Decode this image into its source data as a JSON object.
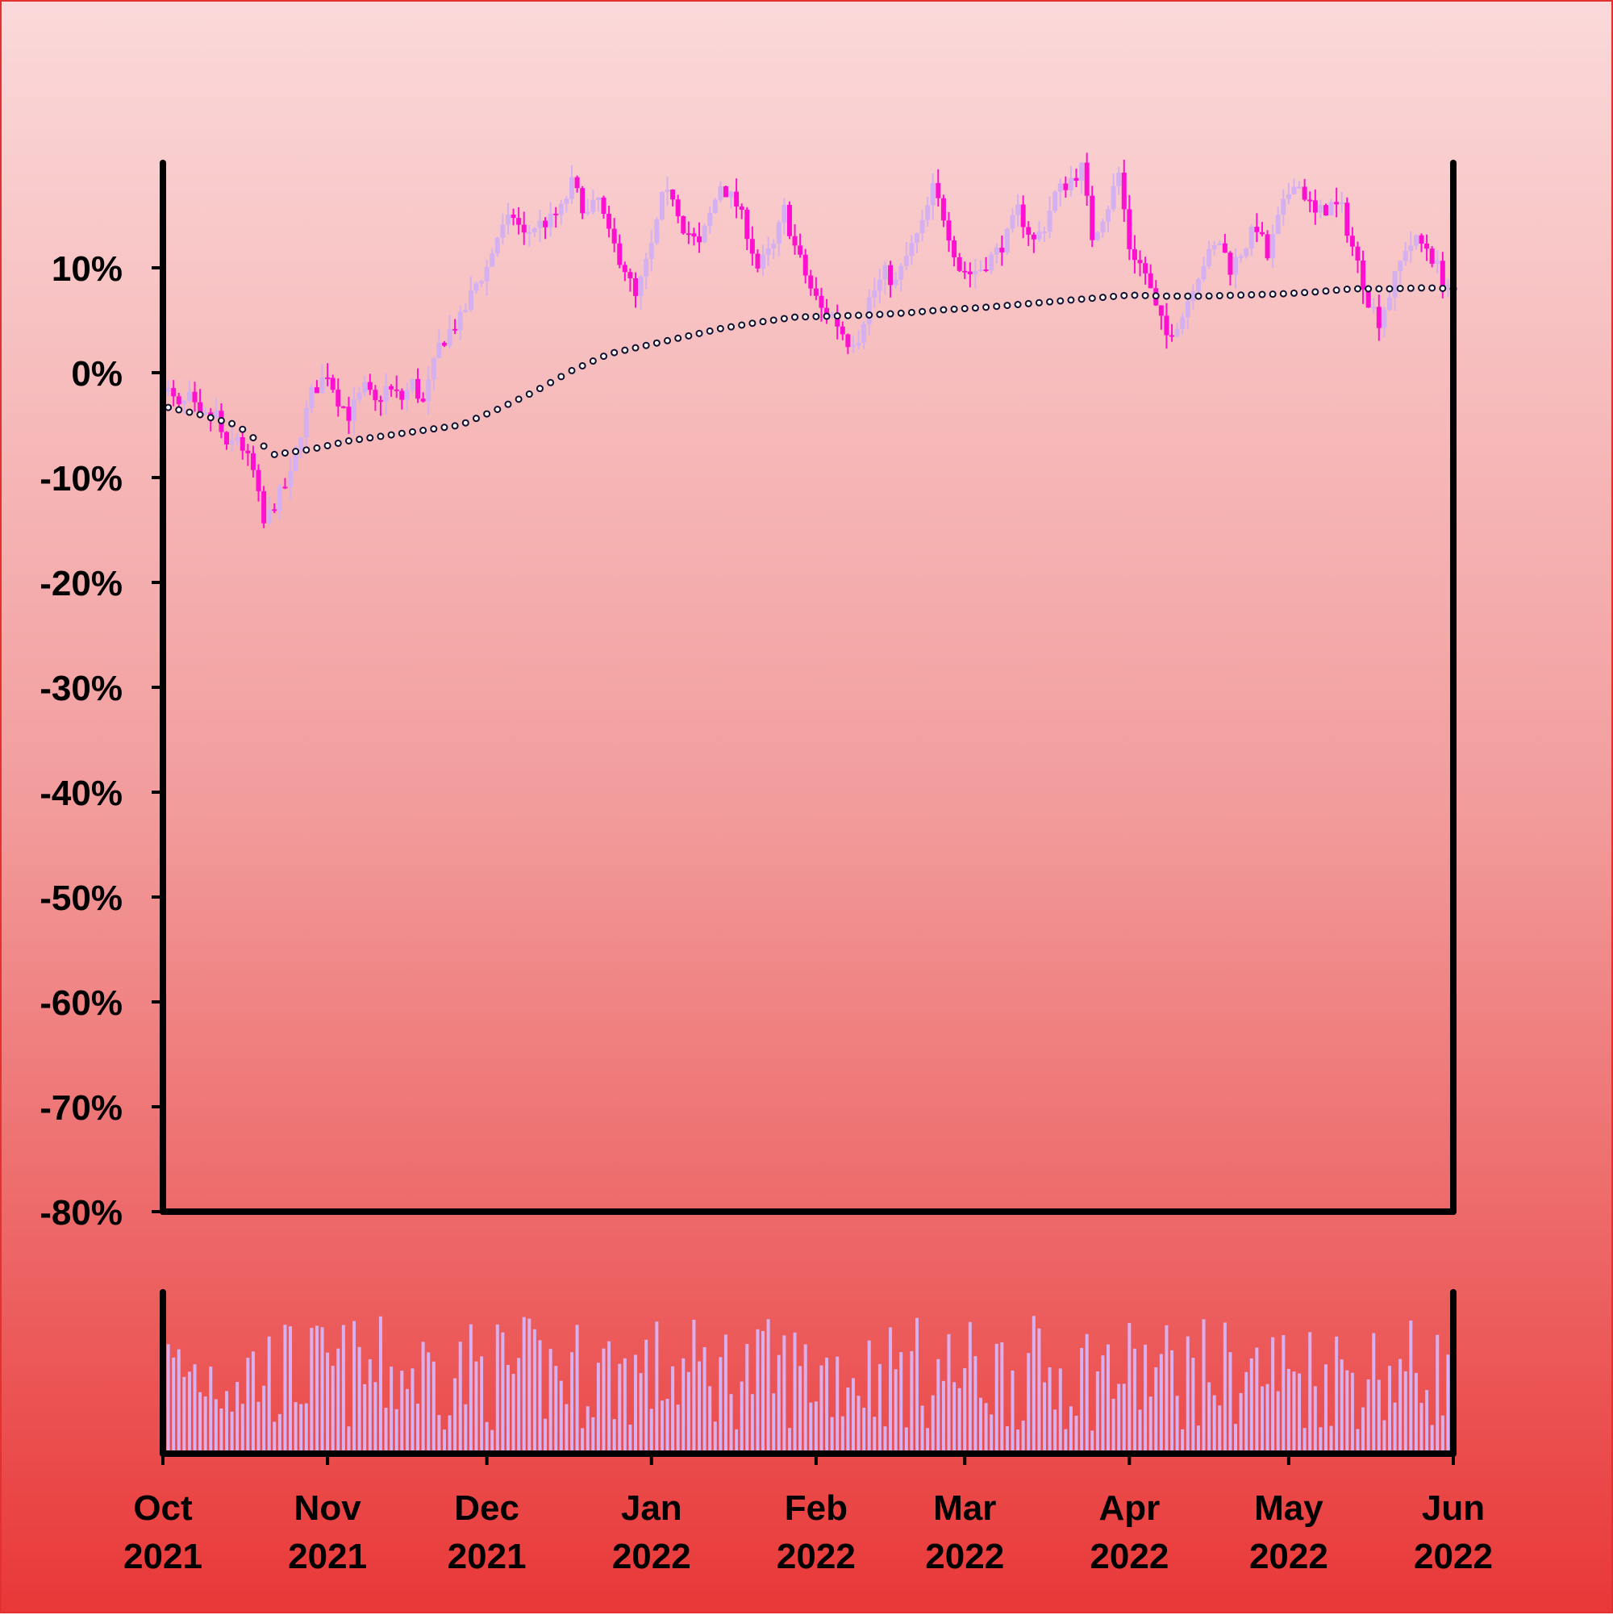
{
  "chart_data": {
    "type": "candlestick",
    "y_unit": "%",
    "y_axis": {
      "ylim": [
        -80,
        20
      ],
      "ticks": [
        "10%",
        "0%",
        "-10%",
        "-20%",
        "-30%",
        "-40%",
        "-50%",
        "-60%",
        "-70%",
        "-80%"
      ]
    },
    "x_axis": {
      "range": [
        "2021-10-01",
        "2022-06-01"
      ],
      "ticks": [
        {
          "date": "2021-10-01",
          "month": "Oct",
          "year": "2021"
        },
        {
          "date": "2021-11-01",
          "month": "Nov",
          "year": "2021"
        },
        {
          "date": "2021-12-01",
          "month": "Dec",
          "year": "2021"
        },
        {
          "date": "2022-01-01",
          "month": "Jan",
          "year": "2022"
        },
        {
          "date": "2022-02-01",
          "month": "Feb",
          "year": "2022"
        },
        {
          "date": "2022-03-01",
          "month": "Mar",
          "year": "2022"
        },
        {
          "date": "2022-04-01",
          "month": "Apr",
          "year": "2022"
        },
        {
          "date": "2022-05-01",
          "month": "May",
          "year": "2022"
        },
        {
          "date": "2022-06-01",
          "month": "Jun",
          "year": "2022"
        }
      ]
    },
    "close_series": [
      [
        "2021-10-01",
        -1.0
      ],
      [
        "2021-10-04",
        -3.5
      ],
      [
        "2021-10-06",
        -2.5
      ],
      [
        "2021-10-08",
        -4.5
      ],
      [
        "2021-10-11",
        -4.0
      ],
      [
        "2021-10-13",
        -7.5
      ],
      [
        "2021-10-15",
        -6.0
      ],
      [
        "2021-10-18",
        -9.5
      ],
      [
        "2021-10-20",
        -14.5
      ],
      [
        "2021-10-22",
        -12.5
      ],
      [
        "2021-10-25",
        -10.0
      ],
      [
        "2021-10-27",
        -5.5
      ],
      [
        "2021-10-29",
        -2.0
      ],
      [
        "2021-11-01",
        0.0
      ],
      [
        "2021-11-03",
        -2.5
      ],
      [
        "2021-11-05",
        -4.0
      ],
      [
        "2021-11-08",
        -1.5
      ],
      [
        "2021-11-10",
        -3.0
      ],
      [
        "2021-11-12",
        -1.5
      ],
      [
        "2021-11-15",
        -2.5
      ],
      [
        "2021-11-17",
        -1.0
      ],
      [
        "2021-11-19",
        -3.0
      ],
      [
        "2021-11-22",
        2.5
      ],
      [
        "2021-11-24",
        4.0
      ],
      [
        "2021-11-26",
        5.0
      ],
      [
        "2021-11-29",
        8.5
      ],
      [
        "2021-12-01",
        10.0
      ],
      [
        "2021-12-03",
        13.0
      ],
      [
        "2021-12-06",
        15.0
      ],
      [
        "2021-12-08",
        13.0
      ],
      [
        "2021-12-10",
        14.0
      ],
      [
        "2021-12-13",
        14.5
      ],
      [
        "2021-12-15",
        15.5
      ],
      [
        "2021-12-17",
        18.0
      ],
      [
        "2021-12-20",
        15.0
      ],
      [
        "2021-12-22",
        16.5
      ],
      [
        "2021-12-24",
        13.0
      ],
      [
        "2021-12-27",
        10.0
      ],
      [
        "2021-12-29",
        7.0
      ],
      [
        "2022-01-01",
        12.0
      ],
      [
        "2022-01-03",
        16.5
      ],
      [
        "2022-01-05",
        17.0
      ],
      [
        "2022-01-07",
        14.0
      ],
      [
        "2022-01-10",
        12.0
      ],
      [
        "2022-01-12",
        15.0
      ],
      [
        "2022-01-14",
        18.0
      ],
      [
        "2022-01-17",
        16.0
      ],
      [
        "2022-01-19",
        13.5
      ],
      [
        "2022-01-21",
        10.0
      ],
      [
        "2022-01-24",
        12.0
      ],
      [
        "2022-01-26",
        15.5
      ],
      [
        "2022-01-28",
        12.0
      ],
      [
        "2022-01-31",
        8.0
      ],
      [
        "2022-02-02",
        6.0
      ],
      [
        "2022-02-04",
        5.5
      ],
      [
        "2022-02-07",
        3.0
      ],
      [
        "2022-02-09",
        3.5
      ],
      [
        "2022-02-11",
        7.0
      ],
      [
        "2022-02-14",
        9.5
      ],
      [
        "2022-02-16",
        8.5
      ],
      [
        "2022-02-18",
        11.0
      ],
      [
        "2022-02-21",
        14.0
      ],
      [
        "2022-02-23",
        17.5
      ],
      [
        "2022-02-25",
        15.0
      ],
      [
        "2022-02-28",
        10.0
      ],
      [
        "2022-03-02",
        9.5
      ],
      [
        "2022-03-04",
        10.0
      ],
      [
        "2022-03-07",
        11.5
      ],
      [
        "2022-03-09",
        13.0
      ],
      [
        "2022-03-11",
        15.5
      ],
      [
        "2022-03-14",
        12.5
      ],
      [
        "2022-03-16",
        14.0
      ],
      [
        "2022-03-18",
        17.0
      ],
      [
        "2022-03-21",
        18.5
      ],
      [
        "2022-03-23",
        19.5
      ],
      [
        "2022-03-25",
        13.0
      ],
      [
        "2022-03-28",
        16.0
      ],
      [
        "2022-03-30",
        19.0
      ],
      [
        "2022-04-01",
        12.0
      ],
      [
        "2022-04-04",
        9.5
      ],
      [
        "2022-04-06",
        6.0
      ],
      [
        "2022-04-08",
        3.5
      ],
      [
        "2022-04-11",
        5.5
      ],
      [
        "2022-04-13",
        8.5
      ],
      [
        "2022-04-15",
        10.5
      ],
      [
        "2022-04-18",
        12.5
      ],
      [
        "2022-04-20",
        10.0
      ],
      [
        "2022-04-22",
        11.5
      ],
      [
        "2022-04-25",
        14.0
      ],
      [
        "2022-04-27",
        11.0
      ],
      [
        "2022-04-29",
        14.5
      ],
      [
        "2022-05-02",
        18.5
      ],
      [
        "2022-05-04",
        17.0
      ],
      [
        "2022-05-06",
        15.0
      ],
      [
        "2022-05-09",
        16.0
      ],
      [
        "2022-05-11",
        15.5
      ],
      [
        "2022-05-13",
        12.0
      ],
      [
        "2022-05-16",
        7.0
      ],
      [
        "2022-05-18",
        5.0
      ],
      [
        "2022-05-20",
        7.5
      ],
      [
        "2022-05-23",
        12.0
      ],
      [
        "2022-05-25",
        12.5
      ],
      [
        "2022-05-27",
        12.0
      ],
      [
        "2022-05-30",
        9.0
      ],
      [
        "2022-06-01",
        8.0
      ]
    ],
    "moving_average": [
      [
        "2021-10-01",
        -3.2
      ],
      [
        "2021-10-08",
        -4.0
      ],
      [
        "2021-10-15",
        -5.0
      ],
      [
        "2021-10-22",
        -7.8
      ],
      [
        "2021-10-29",
        -7.3
      ],
      [
        "2021-11-05",
        -6.5
      ],
      [
        "2021-11-12",
        -6.0
      ],
      [
        "2021-11-19",
        -5.5
      ],
      [
        "2021-11-26",
        -5.0
      ],
      [
        "2021-12-03",
        -3.5
      ],
      [
        "2021-12-10",
        -1.8
      ],
      [
        "2021-12-17",
        0.2
      ],
      [
        "2021-12-24",
        1.8
      ],
      [
        "2021-12-31",
        2.6
      ],
      [
        "2022-01-07",
        3.4
      ],
      [
        "2022-01-14",
        4.2
      ],
      [
        "2022-01-21",
        4.8
      ],
      [
        "2022-01-28",
        5.3
      ],
      [
        "2022-02-04",
        5.4
      ],
      [
        "2022-02-11",
        5.5
      ],
      [
        "2022-02-18",
        5.7
      ],
      [
        "2022-02-25",
        6.0
      ],
      [
        "2022-03-04",
        6.2
      ],
      [
        "2022-03-11",
        6.5
      ],
      [
        "2022-03-18",
        6.8
      ],
      [
        "2022-03-25",
        7.1
      ],
      [
        "2022-04-01",
        7.4
      ],
      [
        "2022-04-08",
        7.3
      ],
      [
        "2022-04-15",
        7.3
      ],
      [
        "2022-04-22",
        7.4
      ],
      [
        "2022-04-29",
        7.5
      ],
      [
        "2022-05-06",
        7.7
      ],
      [
        "2022-05-13",
        8.0
      ],
      [
        "2022-05-20",
        8.0
      ],
      [
        "2022-05-27",
        8.1
      ],
      [
        "2022-06-01",
        8.0
      ]
    ],
    "volume": {
      "description": "relative daily volume, 0-1",
      "ylim": [
        0,
        1
      ]
    },
    "grid": false,
    "legend": "none",
    "colors": {
      "up_candle": "#d4b0f0",
      "down_candle": "#ff10d0",
      "moving_average_marker": "#ffffff",
      "moving_average_edge": "#101030",
      "volume_bar": "#d8b0ee",
      "axis": "#000000",
      "background_top": "#fbd9da",
      "background_bottom": "#e93838"
    }
  }
}
